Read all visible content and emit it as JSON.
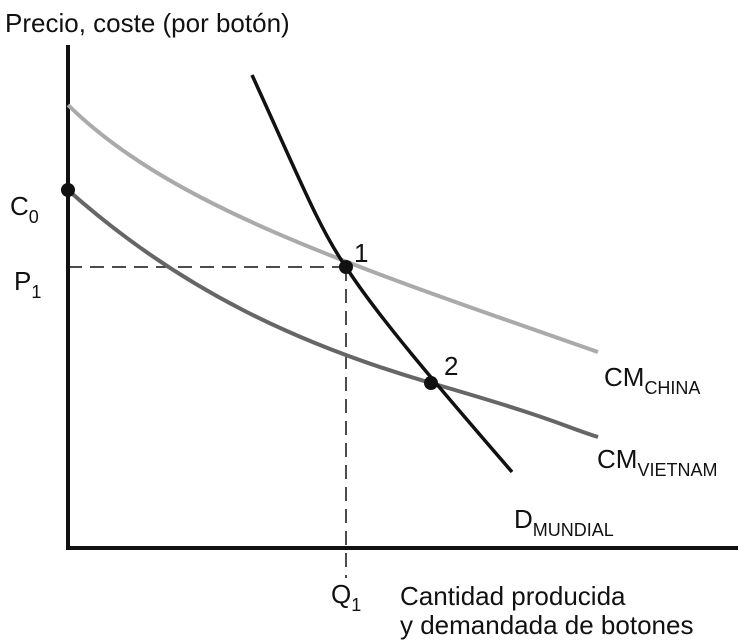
{
  "y_axis_label": "Precio, coste (por botón)",
  "x_axis_label": [
    "Cantidad producida",
    "y demandada de botones"
  ],
  "c0": {
    "main": "C",
    "sub": "0"
  },
  "p1": {
    "main": "P",
    "sub": "1"
  },
  "q1": {
    "main": "Q",
    "sub": "1"
  },
  "points": [
    "1",
    "2"
  ],
  "curves": {
    "china": {
      "main": "CM",
      "sub": "CHINA"
    },
    "vietnam": {
      "main": "CM",
      "sub": "VIETNAM"
    },
    "demand": {
      "main": "D",
      "sub": "MUNDIAL"
    }
  }
}
